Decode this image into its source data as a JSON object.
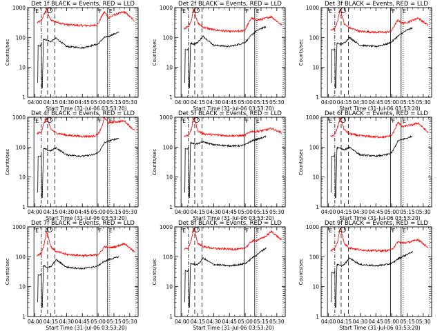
{
  "chart_data": {
    "type": "line",
    "layout": "3x3 grid of panels",
    "x_tick_labels": [
      "04:00",
      "04:15",
      "04:30",
      "04:45",
      "05:00",
      "05:15",
      "05:30"
    ],
    "x_ticks_minutes": [
      0,
      15,
      30,
      45,
      60,
      75,
      90
    ],
    "xlim_minutes": [
      -7,
      98
    ],
    "xlabel": "Start Time (31-Jul-06 03:53:20)",
    "ylabel": "Counts/sec",
    "yscale": "log",
    "ylim": [
      1,
      1000
    ],
    "y_tick_labels": [
      "1",
      "10",
      "100",
      "1000"
    ],
    "y_ticks": [
      1,
      10,
      100,
      1000
    ],
    "grid": false,
    "series_colors": {
      "events": "#000000",
      "lld": "#ff0000"
    },
    "marker_labels": [
      "E",
      "A",
      "F",
      "E"
    ],
    "vertical_markers": {
      "solid_minutes": [
        -1,
        59,
        69
      ],
      "dashdot_minutes": [
        6
      ],
      "dashed_minutes": [
        12,
        19
      ],
      "dotted_minutes": [
        71,
        96
      ]
    },
    "panels": [
      {
        "title": "Det 1f BLACK = Events, RED = LLD",
        "red": {
          "x": [
            2,
            6,
            9,
            11,
            12,
            15,
            20,
            30,
            45,
            55,
            60,
            63,
            66,
            70,
            75,
            80,
            85,
            95
          ],
          "y": [
            310,
            360,
            640,
            900,
            700,
            380,
            330,
            270,
            250,
            250,
            280,
            480,
            720,
            450,
            560,
            650,
            720,
            350
          ]
        },
        "black": {
          "x": [
            3,
            5,
            6,
            7,
            8,
            12,
            15,
            20,
            30,
            45,
            55,
            60,
            63,
            66,
            70,
            75,
            80
          ],
          "y": [
            55,
            50,
            65,
            90,
            90,
            80,
            72,
            95,
            50,
            45,
            55,
            60,
            80,
            100,
            110,
            130,
            150
          ]
        }
      },
      {
        "title": "Det 2f BLACK = Events, RED = LLD",
        "red": {
          "x": [
            2,
            6,
            9,
            11,
            12,
            15,
            20,
            30,
            45,
            55,
            60,
            63,
            66,
            70,
            75,
            80,
            85,
            95
          ],
          "y": [
            200,
            230,
            400,
            900,
            700,
            300,
            220,
            180,
            160,
            160,
            180,
            300,
            450,
            380,
            400,
            450,
            500,
            250
          ]
        },
        "black": {
          "x": [
            3,
            5,
            6,
            7,
            8,
            12,
            15,
            20,
            30,
            45,
            55,
            60,
            63,
            66,
            70,
            75,
            80
          ],
          "y": [
            40,
            38,
            45,
            60,
            65,
            60,
            70,
            110,
            55,
            50,
            60,
            70,
            90,
            120,
            160,
            200,
            230
          ]
        }
      },
      {
        "title": "Det 3f BLACK = Events, RED = LLD",
        "red": {
          "x": [
            2,
            6,
            9,
            11,
            12,
            15,
            20,
            30,
            45,
            55,
            60,
            63,
            66,
            70,
            75,
            80,
            85,
            95
          ],
          "y": [
            180,
            200,
            380,
            900,
            700,
            280,
            210,
            160,
            150,
            150,
            170,
            260,
            380,
            300,
            320,
            380,
            450,
            250
          ]
        },
        "black": {
          "x": [
            3,
            5,
            6,
            7,
            8,
            12,
            15,
            20,
            30,
            45,
            55,
            60,
            63,
            66,
            70,
            75,
            80
          ],
          "y": [
            40,
            38,
            42,
            60,
            65,
            60,
            65,
            100,
            55,
            50,
            60,
            70,
            90,
            110,
            140,
            180,
            210
          ]
        }
      },
      {
        "title": "Det 4f BLACK = Events, RED = LLD",
        "red": {
          "x": [
            2,
            6,
            9,
            11,
            12,
            15,
            20,
            30,
            45,
            55,
            60,
            63,
            66,
            70,
            75,
            80,
            85,
            95
          ],
          "y": [
            280,
            330,
            700,
            950,
            800,
            400,
            300,
            250,
            230,
            230,
            270,
            420,
            950,
            650,
            700,
            720,
            750,
            350
          ]
        },
        "black": {
          "x": [
            3,
            5,
            6,
            7,
            8,
            12,
            15,
            20,
            30,
            45,
            55,
            60,
            63,
            66,
            70,
            75,
            80
          ],
          "y": [
            50,
            48,
            55,
            80,
            90,
            80,
            75,
            95,
            55,
            50,
            55,
            65,
            90,
            140,
            160,
            180,
            200
          ]
        }
      },
      {
        "title": "Det 5f BLACK = Events, RED = LLD",
        "red": {
          "x": [
            2,
            6,
            9,
            11,
            12,
            15,
            20,
            30,
            45,
            55,
            60,
            63,
            66,
            70,
            75,
            80,
            85,
            95
          ],
          "y": [
            230,
            250,
            400,
            1100,
            800,
            350,
            280,
            260,
            240,
            240,
            250,
            300,
            340,
            330,
            350,
            380,
            420,
            300
          ]
        },
        "black": {
          "x": [
            3,
            5,
            6,
            7,
            8,
            12,
            15,
            20,
            30,
            45,
            55,
            60,
            63,
            66,
            70,
            75,
            80
          ],
          "y": [
            90,
            85,
            100,
            130,
            140,
            130,
            130,
            150,
            120,
            110,
            110,
            120,
            140,
            160,
            180,
            200,
            230
          ]
        }
      },
      {
        "title": "Det 6f BLACK = Events, RED = LLD",
        "red": {
          "x": [
            2,
            6,
            9,
            11,
            12,
            15,
            20,
            30,
            45,
            55,
            60,
            63,
            66,
            70,
            75,
            80,
            85,
            95
          ],
          "y": [
            230,
            260,
            500,
            950,
            800,
            380,
            280,
            240,
            220,
            220,
            250,
            380,
            700,
            480,
            520,
            560,
            650,
            300
          ]
        },
        "black": {
          "x": [
            3,
            5,
            6,
            7,
            8,
            12,
            15,
            20,
            30,
            45,
            55,
            60,
            63,
            66,
            70,
            75,
            80
          ],
          "y": [
            50,
            48,
            55,
            80,
            95,
            90,
            80,
            100,
            55,
            50,
            55,
            65,
            100,
            160,
            180,
            200,
            240
          ]
        }
      },
      {
        "title": "Det 7f BLACK = Events, RED = LLD",
        "red": {
          "x": [
            2,
            6,
            9,
            11,
            12,
            15,
            20,
            30,
            45,
            55,
            60,
            63,
            66,
            70,
            75,
            80,
            85,
            95
          ],
          "y": [
            110,
            130,
            300,
            700,
            600,
            220,
            150,
            120,
            110,
            110,
            120,
            150,
            220,
            200,
            210,
            240,
            280,
            140
          ]
        },
        "black": {
          "x": [
            3,
            5,
            6,
            7,
            8,
            12,
            15,
            20,
            30,
            45,
            55,
            60,
            63,
            66,
            70,
            75,
            80
          ],
          "y": [
            25,
            24,
            28,
            40,
            50,
            45,
            45,
            80,
            45,
            40,
            45,
            50,
            60,
            70,
            80,
            90,
            100
          ]
        }
      },
      {
        "title": "Det 8f BLACK = Events, RED = LLD",
        "red": {
          "x": [
            2,
            6,
            9,
            11,
            12,
            15,
            20,
            30,
            45,
            55,
            60,
            63,
            66,
            70,
            75,
            80,
            85,
            95
          ],
          "y": [
            180,
            200,
            400,
            800,
            700,
            280,
            220,
            190,
            180,
            180,
            200,
            250,
            330,
            350,
            400,
            500,
            700,
            350
          ]
        },
        "black": {
          "x": [
            3,
            5,
            6,
            7,
            8,
            12,
            15,
            20,
            30,
            45,
            55,
            60,
            63,
            66,
            70,
            75,
            80
          ],
          "y": [
            35,
            32,
            38,
            50,
            60,
            55,
            55,
            90,
            55,
            50,
            55,
            60,
            70,
            90,
            110,
            150,
            200
          ]
        }
      },
      {
        "title": "Det 9f BLACK = Events, RED = LLD",
        "red": {
          "x": [
            2,
            6,
            9,
            11,
            12,
            15,
            20,
            30,
            45,
            55,
            60,
            63,
            66,
            70,
            75,
            80,
            85,
            95
          ],
          "y": [
            160,
            190,
            350,
            900,
            800,
            270,
            200,
            170,
            160,
            160,
            175,
            230,
            320,
            290,
            300,
            330,
            380,
            200
          ]
        },
        "black": {
          "x": [
            3,
            5,
            6,
            7,
            8,
            12,
            15,
            20,
            30,
            45,
            55,
            60,
            63,
            66,
            70,
            75,
            80
          ],
          "y": [
            30,
            28,
            32,
            45,
            55,
            50,
            55,
            90,
            55,
            50,
            55,
            60,
            70,
            85,
            100,
            120,
            150
          ]
        }
      }
    ]
  }
}
